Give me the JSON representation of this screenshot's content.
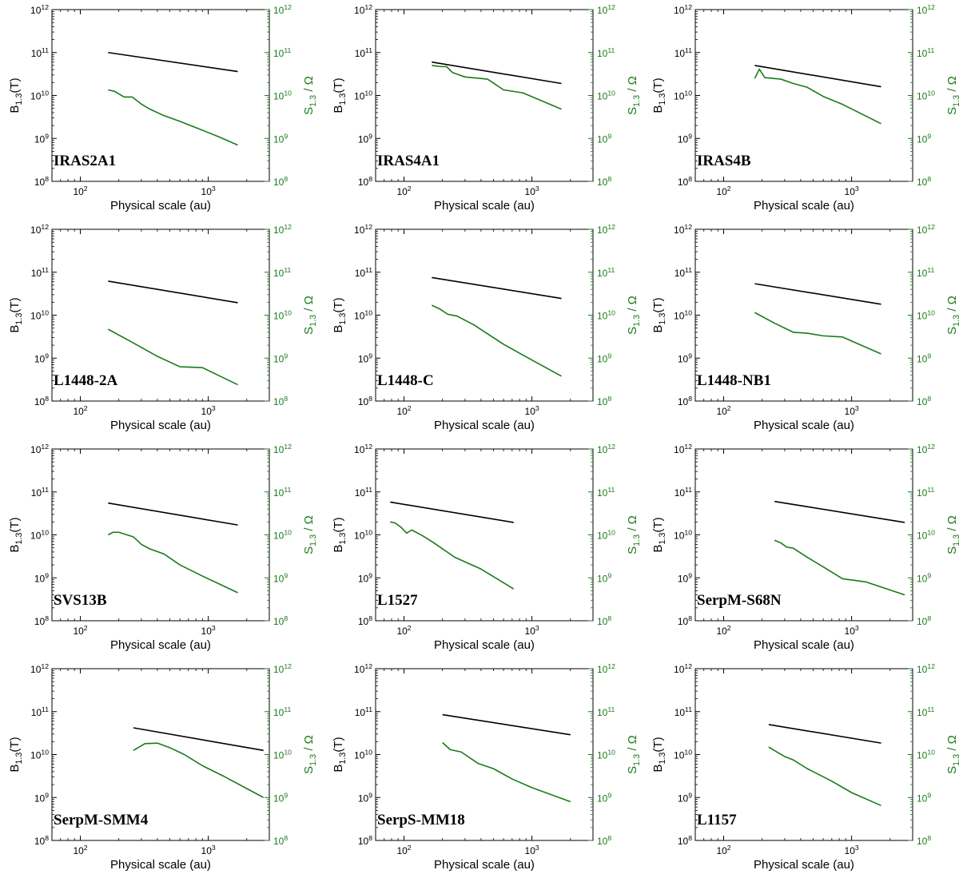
{
  "colors": {
    "b_line": "#000000",
    "s_line": "#1a7a1a",
    "s_axis": "#1a7a1a"
  },
  "chart_data": [
    {
      "type": "line",
      "source": "IRAS2A1",
      "xlabel": "Physical scale (au)",
      "ylabel_left": "B_{1.3}(T)",
      "ylabel_right": "S_{1.3} / Ω",
      "xscale": "log",
      "yscale": "log",
      "xlim": [
        60,
        3000
      ],
      "ylim": [
        100000000.0,
        1000000000000.0
      ],
      "xticks": [
        "10^2",
        "10^3"
      ],
      "yticks": [
        "10^8",
        "10^9",
        "10^10",
        "10^11",
        "10^12"
      ],
      "series": [
        {
          "name": "B_{1.3}(T)",
          "axis": "left",
          "x": [
            165,
            1700
          ],
          "y": [
            100000000000.0,
            36000000000.0
          ]
        },
        {
          "name": "S_{1.3} / Ω",
          "axis": "right",
          "x": [
            165,
            185,
            220,
            255,
            300,
            350,
            450,
            600,
            900,
            1200,
            1700
          ],
          "y": [
            13500000000.0,
            12500000000.0,
            9200000000.0,
            9200000000.0,
            6300000000.0,
            4800000000.0,
            3400000000.0,
            2500000000.0,
            1550000000.0,
            1100000000.0,
            700000000.0
          ]
        }
      ]
    },
    {
      "type": "line",
      "source": "IRAS4A1",
      "xlabel": "Physical scale (au)",
      "ylabel_left": "B_{1.3}(T)",
      "ylabel_right": "S_{1.3} / Ω",
      "xscale": "log",
      "yscale": "log",
      "xlim": [
        60,
        3000
      ],
      "ylim": [
        100000000.0,
        1000000000000.0
      ],
      "xticks": [
        "10^2",
        "10^3"
      ],
      "yticks": [
        "10^8",
        "10^9",
        "10^10",
        "10^11",
        "10^12"
      ],
      "series": [
        {
          "name": "B_{1.3}(T)",
          "axis": "left",
          "x": [
            165,
            1700
          ],
          "y": [
            60000000000.0,
            19000000000.0
          ]
        },
        {
          "name": "S_{1.3} / Ω",
          "axis": "right",
          "x": [
            165,
            195,
            215,
            240,
            300,
            450,
            600,
            850,
            1700
          ],
          "y": [
            50000000000.0,
            47000000000.0,
            47000000000.0,
            34000000000.0,
            27000000000.0,
            24000000000.0,
            13500000000.0,
            11500000000.0,
            4800000000.0
          ]
        }
      ]
    },
    {
      "type": "line",
      "source": "IRAS4B",
      "xlabel": "Physical scale (au)",
      "ylabel_left": "B_{1.3}(T)",
      "ylabel_right": "S_{1.3} / Ω",
      "xscale": "log",
      "yscale": "log",
      "xlim": [
        60,
        3000
      ],
      "ylim": [
        100000000.0,
        1000000000000.0
      ],
      "xticks": [
        "10^2",
        "10^3"
      ],
      "yticks": [
        "10^8",
        "10^9",
        "10^10",
        "10^11",
        "10^12"
      ],
      "series": [
        {
          "name": "B_{1.3}(T)",
          "axis": "left",
          "x": [
            175,
            1700
          ],
          "y": [
            50000000000.0,
            16000000000.0
          ]
        },
        {
          "name": "S_{1.3} / Ω",
          "axis": "right",
          "x": [
            175,
            190,
            210,
            280,
            350,
            450,
            600,
            850,
            1700
          ],
          "y": [
            25000000000.0,
            41000000000.0,
            26000000000.0,
            24000000000.0,
            19000000000.0,
            15500000000.0,
            9500000000.0,
            6200000000.0,
            2200000000.0
          ]
        }
      ]
    },
    {
      "type": "line",
      "source": "L1448-2A",
      "xlabel": "Physical scale (au)",
      "ylabel_left": "B_{1.3}(T)",
      "ylabel_right": "S_{1.3} / Ω",
      "xscale": "log",
      "yscale": "log",
      "xlim": [
        60,
        3000
      ],
      "ylim": [
        100000000.0,
        1000000000000.0
      ],
      "xticks": [
        "10^2",
        "10^3"
      ],
      "yticks": [
        "10^8",
        "10^9",
        "10^10",
        "10^11",
        "10^12"
      ],
      "series": [
        {
          "name": "B_{1.3}(T)",
          "axis": "left",
          "x": [
            165,
            1700
          ],
          "y": [
            62000000000.0,
            19500000000.0
          ]
        },
        {
          "name": "S_{1.3} / Ω",
          "axis": "right",
          "x": [
            165,
            250,
            400,
            600,
            900,
            1700
          ],
          "y": [
            4700000000.0,
            2400000000.0,
            1100000000.0,
            630000000.0,
            600000000.0,
            240000000.0
          ]
        }
      ]
    },
    {
      "type": "line",
      "source": "L1448-C",
      "xlabel": "Physical scale (au)",
      "ylabel_left": "B_{1.3}(T)",
      "ylabel_right": "S_{1.3} / Ω",
      "xscale": "log",
      "yscale": "log",
      "xlim": [
        60,
        3000
      ],
      "ylim": [
        100000000.0,
        1000000000000.0
      ],
      "xticks": [
        "10^2",
        "10^3"
      ],
      "yticks": [
        "10^8",
        "10^9",
        "10^10",
        "10^11",
        "10^12"
      ],
      "series": [
        {
          "name": "B_{1.3}(T)",
          "axis": "left",
          "x": [
            165,
            1700
          ],
          "y": [
            75000000000.0,
            24500000000.0
          ]
        },
        {
          "name": "S_{1.3} / Ω",
          "axis": "right",
          "x": [
            165,
            190,
            220,
            260,
            350,
            600,
            1000,
            1700
          ],
          "y": [
            17000000000.0,
            14000000000.0,
            10500000000.0,
            9500000000.0,
            6000000000.0,
            2100000000.0,
            900000000.0,
            380000000.0
          ]
        }
      ]
    },
    {
      "type": "line",
      "source": "L1448-NB1",
      "xlabel": "Physical scale (au)",
      "ylabel_left": "B_{1.3}(T)",
      "ylabel_right": "S_{1.3} / Ω",
      "xscale": "log",
      "yscale": "log",
      "xlim": [
        60,
        3000
      ],
      "ylim": [
        100000000.0,
        1000000000000.0
      ],
      "xticks": [
        "10^2",
        "10^3"
      ],
      "yticks": [
        "10^8",
        "10^9",
        "10^10",
        "10^11",
        "10^12"
      ],
      "series": [
        {
          "name": "B_{1.3}(T)",
          "axis": "left",
          "x": [
            175,
            1700
          ],
          "y": [
            54000000000.0,
            18000000000.0
          ]
        },
        {
          "name": "S_{1.3} / Ω",
          "axis": "right",
          "x": [
            175,
            250,
            350,
            450,
            600,
            850,
            1700
          ],
          "y": [
            11500000000.0,
            6500000000.0,
            4000000000.0,
            3800000000.0,
            3300000000.0,
            3100000000.0,
            1250000000.0
          ]
        }
      ]
    },
    {
      "type": "line",
      "source": "SVS13B",
      "xlabel": "Physical scale (au)",
      "ylabel_left": "B_{1.3}(T)",
      "ylabel_right": "S_{1.3} / Ω",
      "xscale": "log",
      "yscale": "log",
      "xlim": [
        60,
        3000
      ],
      "ylim": [
        100000000.0,
        1000000000000.0
      ],
      "xticks": [
        "10^2",
        "10^3"
      ],
      "yticks": [
        "10^8",
        "10^9",
        "10^10",
        "10^11",
        "10^12"
      ],
      "series": [
        {
          "name": "B_{1.3}(T)",
          "axis": "left",
          "x": [
            165,
            1700
          ],
          "y": [
            55000000000.0,
            17000000000.0
          ]
        },
        {
          "name": "S_{1.3} / Ω",
          "axis": "right",
          "x": [
            165,
            180,
            200,
            220,
            260,
            300,
            350,
            450,
            600,
            900,
            1700
          ],
          "y": [
            10000000000.0,
            11500000000.0,
            11500000000.0,
            10500000000.0,
            9000000000.0,
            6000000000.0,
            4700000000.0,
            3600000000.0,
            2000000000.0,
            1100000000.0,
            450000000.0
          ]
        }
      ]
    },
    {
      "type": "line",
      "source": "L1527",
      "xlabel": "Physical scale (au)",
      "ylabel_left": "B_{1.3}(T)",
      "ylabel_right": "S_{1.3} / Ω",
      "xscale": "log",
      "yscale": "log",
      "xlim": [
        60,
        3000
      ],
      "ylim": [
        100000000.0,
        1000000000000.0
      ],
      "xticks": [
        "10^2",
        "10^3"
      ],
      "yticks": [
        "10^8",
        "10^9",
        "10^10",
        "10^11",
        "10^12"
      ],
      "series": [
        {
          "name": "B_{1.3}(T)",
          "axis": "left",
          "x": [
            78,
            720
          ],
          "y": [
            58000000000.0,
            19500000000.0
          ]
        },
        {
          "name": "S_{1.3} / Ω",
          "axis": "right",
          "x": [
            78,
            85,
            95,
            105,
            115,
            140,
            170,
            250,
            400,
            720
          ],
          "y": [
            20000000000.0,
            19000000000.0,
            15000000000.0,
            11000000000.0,
            13000000000.0,
            9500000000.0,
            6600000000.0,
            3000000000.0,
            1600000000.0,
            550000000.0
          ]
        }
      ]
    },
    {
      "type": "line",
      "source": "SerpM-S68N",
      "xlabel": "Physical scale (au)",
      "ylabel_left": "B_{1.3}(T)",
      "ylabel_right": "S_{1.3} / Ω",
      "xscale": "log",
      "yscale": "log",
      "xlim": [
        60,
        3000
      ],
      "ylim": [
        100000000.0,
        1000000000000.0
      ],
      "xticks": [
        "10^2",
        "10^3"
      ],
      "yticks": [
        "10^8",
        "10^9",
        "10^10",
        "10^11",
        "10^12"
      ],
      "series": [
        {
          "name": "B_{1.3}(T)",
          "axis": "left",
          "x": [
            250,
            2600
          ],
          "y": [
            60000000000.0,
            19500000000.0
          ]
        },
        {
          "name": "S_{1.3} / Ω",
          "axis": "right",
          "x": [
            250,
            280,
            310,
            350,
            450,
            600,
            850,
            1300,
            2600
          ],
          "y": [
            7500000000.0,
            6500000000.0,
            5200000000.0,
            4900000000.0,
            3000000000.0,
            1800000000.0,
            950000000.0,
            800000000.0,
            400000000.0
          ]
        }
      ]
    },
    {
      "type": "line",
      "source": "SerpM-SMM4",
      "xlabel": "Physical scale (au)",
      "ylabel_left": "B_{1.3}(T)",
      "ylabel_right": "S_{1.3} / Ω",
      "xscale": "log",
      "yscale": "log",
      "xlim": [
        60,
        3000
      ],
      "ylim": [
        100000000.0,
        1000000000000.0
      ],
      "xticks": [
        "10^2",
        "10^3"
      ],
      "yticks": [
        "10^8",
        "10^9",
        "10^10",
        "10^11",
        "10^12"
      ],
      "series": [
        {
          "name": "B_{1.3}(T)",
          "axis": "left",
          "x": [
            260,
            2700
          ],
          "y": [
            42000000000.0,
            12500000000.0
          ]
        },
        {
          "name": "S_{1.3} / Ω",
          "axis": "right",
          "x": [
            260,
            320,
            400,
            500,
            650,
            900,
            1300,
            2700
          ],
          "y": [
            12500000000.0,
            18000000000.0,
            18500000000.0,
            14500000000.0,
            10000000000.0,
            5500000000.0,
            3200000000.0,
            1000000000.0
          ]
        }
      ]
    },
    {
      "type": "line",
      "source": "SerpS-MM18",
      "xlabel": "Physical scale (au)",
      "ylabel_left": "B_{1.3}(T)",
      "ylabel_right": "S_{1.3} / Ω",
      "xscale": "log",
      "yscale": "log",
      "xlim": [
        60,
        3000
      ],
      "ylim": [
        100000000.0,
        1000000000000.0
      ],
      "xticks": [
        "10^2",
        "10^3"
      ],
      "yticks": [
        "10^8",
        "10^9",
        "10^10",
        "10^11",
        "10^12"
      ],
      "series": [
        {
          "name": "B_{1.3}(T)",
          "axis": "left",
          "x": [
            200,
            2000
          ],
          "y": [
            85000000000.0,
            29000000000.0
          ]
        },
        {
          "name": "S_{1.3} / Ω",
          "axis": "right",
          "x": [
            200,
            230,
            280,
            380,
            500,
            700,
            1000,
            2000
          ],
          "y": [
            19000000000.0,
            13000000000.0,
            11500000000.0,
            6200000000.0,
            4700000000.0,
            2700000000.0,
            1700000000.0,
            800000000.0
          ]
        }
      ]
    },
    {
      "type": "line",
      "source": "L1157",
      "xlabel": "Physical scale (au)",
      "ylabel_left": "B_{1.3}(T)",
      "ylabel_right": "S_{1.3} / Ω",
      "xscale": "log",
      "yscale": "log",
      "xlim": [
        60,
        3000
      ],
      "ylim": [
        100000000.0,
        1000000000000.0
      ],
      "xticks": [
        "10^2",
        "10^3"
      ],
      "yticks": [
        "10^8",
        "10^9",
        "10^10",
        "10^11",
        "10^12"
      ],
      "series": [
        {
          "name": "B_{1.3}(T)",
          "axis": "left",
          "x": [
            225,
            1700
          ],
          "y": [
            50000000000.0,
            18500000000.0
          ]
        },
        {
          "name": "S_{1.3} / Ω",
          "axis": "right",
          "x": [
            225,
            260,
            300,
            350,
            450,
            700,
            1000,
            1700
          ],
          "y": [
            15000000000.0,
            11500000000.0,
            9000000000.0,
            7500000000.0,
            4700000000.0,
            2400000000.0,
            1300000000.0,
            650000000.0
          ]
        }
      ]
    }
  ]
}
